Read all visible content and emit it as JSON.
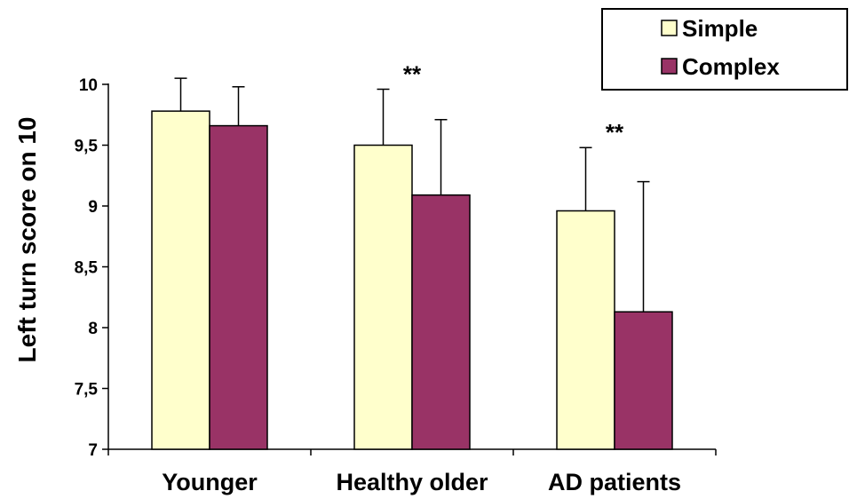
{
  "chart_data": {
    "type": "bar",
    "title": "",
    "xlabel": "",
    "ylabel": "Left turn score on 10",
    "ylim": [
      7,
      10
    ],
    "yticks": [
      7,
      7.5,
      8,
      8.5,
      9,
      9.5,
      10
    ],
    "ytick_labels": [
      "7",
      "7,5",
      "8",
      "8,5",
      "9",
      "9,5",
      "10"
    ],
    "categories": [
      "Younger",
      "Healthy older",
      "AD patients"
    ],
    "series": [
      {
        "name": "Simple",
        "color": "#FFFFCC",
        "values": [
          9.78,
          9.5,
          8.96
        ],
        "errors": [
          0.27,
          0.46,
          0.52
        ]
      },
      {
        "name": "Complex",
        "color": "#993366",
        "values": [
          9.66,
          9.09,
          8.13
        ],
        "errors": [
          0.32,
          0.62,
          1.07
        ]
      }
    ],
    "annotations": [
      {
        "category": "Healthy older",
        "text": "**"
      },
      {
        "category": "AD patients",
        "text": "**"
      }
    ],
    "legend_position": "top-right",
    "grid": false
  }
}
